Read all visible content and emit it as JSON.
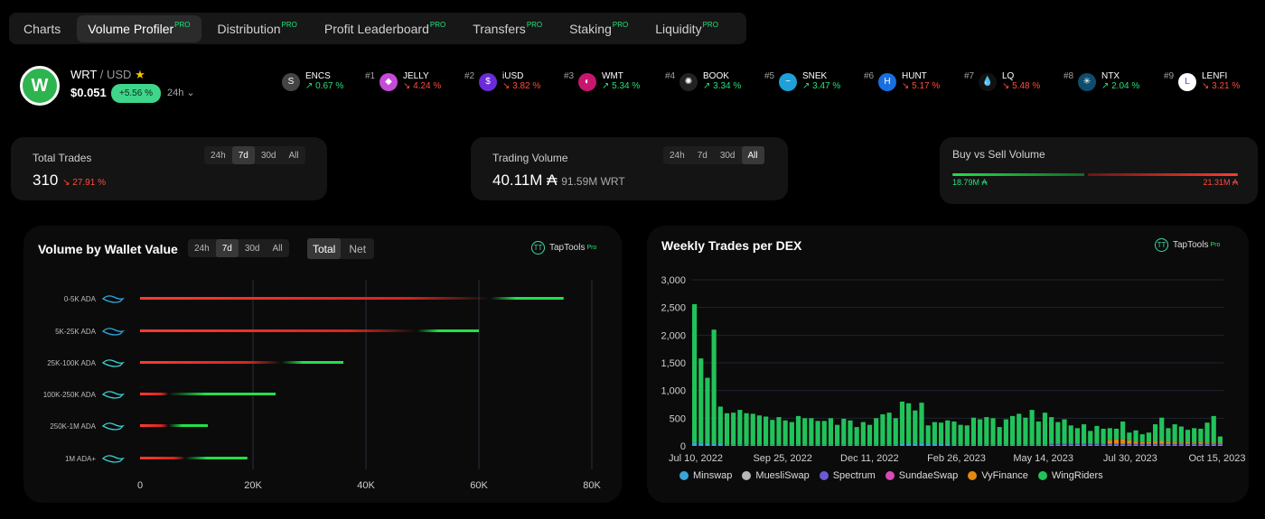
{
  "tabs": [
    {
      "label": "Charts",
      "pro": ""
    },
    {
      "label": "Volume Profiler",
      "pro": "PRO"
    },
    {
      "label": "Distribution",
      "pro": "PRO"
    },
    {
      "label": "Profit Leaderboard",
      "pro": "PRO"
    },
    {
      "label": "Transfers",
      "pro": "PRO"
    },
    {
      "label": "Staking",
      "pro": "PRO"
    },
    {
      "label": "Liquidity",
      "pro": "PRO"
    }
  ],
  "token": {
    "symbol": "WRT",
    "quote": "/ USD",
    "star": "★",
    "price": "$0.051",
    "change": "+5.56 %",
    "timeframe": "24h",
    "chevron": "⌄"
  },
  "trending": [
    {
      "rank": "",
      "name": "ENCS",
      "change": "↗ 0.67 %",
      "dir": "up",
      "color": "#444444",
      "glyph": "S"
    },
    {
      "rank": "#1",
      "name": "JELLY",
      "change": "↘ 4.24 %",
      "dir": "down",
      "color": "#c54bd8",
      "glyph": "◆"
    },
    {
      "rank": "#2",
      "name": "iUSD",
      "change": "↘ 3.82 %",
      "dir": "down",
      "color": "#6a2bd9",
      "glyph": "$"
    },
    {
      "rank": "#3",
      "name": "WMT",
      "change": "↗ 5.34 %",
      "dir": "up",
      "color": "#c8166f",
      "glyph": "◐"
    },
    {
      "rank": "#4",
      "name": "BOOK",
      "change": "↗ 3.34 %",
      "dir": "up",
      "color": "#222222",
      "glyph": "✺"
    },
    {
      "rank": "#5",
      "name": "SNEK",
      "change": "↗ 3.47 %",
      "dir": "up",
      "color": "#1ea0d8",
      "glyph": "~"
    },
    {
      "rank": "#6",
      "name": "HUNT",
      "change": "↘ 5.17 %",
      "dir": "down",
      "color": "#1a6fe0",
      "glyph": "H"
    },
    {
      "rank": "#7",
      "name": "LQ",
      "change": "↘ 5.48 %",
      "dir": "down",
      "color": "#111111",
      "glyph": "💧"
    },
    {
      "rank": "#8",
      "name": "NTX",
      "change": "↗ 2.04 %",
      "dir": "up",
      "color": "#0e4d6e",
      "glyph": "✳"
    },
    {
      "rank": "#9",
      "name": "LENFI",
      "change": "↘ 3.21 %",
      "dir": "down",
      "color": "#ffffff",
      "glyph": "L"
    }
  ],
  "total_trades": {
    "label": "Total Trades",
    "value": "310",
    "change": "↘ 27.91 %",
    "ranges": [
      "24h",
      "7d",
      "30d",
      "All"
    ],
    "selected": "7d"
  },
  "trading_volume": {
    "label": "Trading Volume",
    "value": "40.11M ₳",
    "sub": "91.59M WRT",
    "ranges": [
      "24h",
      "7d",
      "30d",
      "All"
    ],
    "selected": "All"
  },
  "buy_sell": {
    "label": "Buy vs Sell Volume",
    "buy": "18.79M ₳",
    "sell": "21.31M ₳",
    "buy_value": 18.79,
    "sell_value": 21.31
  },
  "wallet_panel": {
    "title": "Volume by Wallet Value",
    "ranges": [
      "24h",
      "7d",
      "30d",
      "All"
    ],
    "selected": "7d",
    "modes": [
      "Total",
      "Net"
    ],
    "mode_selected": "Total",
    "brand": "TapTools",
    "brand_pro": "Pro"
  },
  "dex_panel": {
    "title": "Weekly Trades per DEX",
    "brand": "TapTools",
    "brand_pro": "Pro"
  },
  "chart_data": [
    {
      "type": "bar",
      "title": "Volume by Wallet Value",
      "orientation": "horizontal",
      "categories": [
        "0-5K ADA",
        "5K-25K ADA",
        "25K-100K ADA",
        "100K-250K ADA",
        "250K-1M ADA",
        "1M ADA+"
      ],
      "series": [
        {
          "name": "Sell",
          "color": "#ff3b30",
          "values": [
            62000,
            49000,
            25000,
            5000,
            5000,
            8000
          ]
        },
        {
          "name": "Buy",
          "color": "#22e04a",
          "values": [
            75000,
            60000,
            36000,
            24000,
            12000,
            19000
          ]
        }
      ],
      "xticks": [
        "0",
        "20K",
        "40K",
        "60K",
        "80K"
      ],
      "xlim": [
        0,
        80000
      ],
      "grid": true
    },
    {
      "type": "bar",
      "stacked": true,
      "title": "Weekly Trades per DEX",
      "ylim": [
        0,
        3000
      ],
      "yticks": [
        "0",
        "500",
        "1,000",
        "1,500",
        "2,000",
        "2,500",
        "3,000"
      ],
      "xtick_labels": [
        "Jul 10, 2022",
        "Sep 25, 2022",
        "Dec 11, 2022",
        "Feb 26, 2023",
        "May 14, 2023",
        "Jul 30, 2023",
        "Oct 15, 2023"
      ],
      "legend_position": "bottom",
      "series": [
        {
          "name": "Minswap",
          "color": "#3aa6d8",
          "values": [
            60,
            60,
            50,
            40,
            50,
            20,
            20,
            20,
            20,
            20,
            20,
            20,
            20,
            20,
            20,
            20,
            20,
            20,
            20,
            20,
            20,
            20,
            20,
            20,
            20,
            20,
            20,
            20,
            20,
            20,
            20,
            20,
            40,
            40,
            40,
            60,
            40,
            40,
            40,
            40,
            20,
            20,
            20,
            20,
            20,
            20,
            20,
            20,
            20,
            20,
            20,
            20,
            20,
            20,
            20,
            20,
            20,
            20,
            20,
            20,
            20,
            20,
            20,
            20,
            20,
            20,
            20,
            20,
            20,
            20,
            20,
            20,
            20,
            20,
            20,
            20,
            20,
            20,
            20,
            20,
            20,
            20
          ]
        },
        {
          "name": "MuesliSwap",
          "color": "#b8b8b8",
          "values": [
            0,
            0,
            0,
            0,
            0,
            0,
            0,
            0,
            0,
            0,
            0,
            0,
            0,
            0,
            0,
            0,
            0,
            0,
            0,
            0,
            0,
            0,
            0,
            0,
            0,
            0,
            0,
            0,
            0,
            0,
            0,
            0,
            0,
            0,
            0,
            0,
            0,
            0,
            0,
            0,
            0,
            0,
            0,
            0,
            0,
            0,
            0,
            0,
            0,
            0,
            0,
            0,
            0,
            0,
            0,
            0,
            0,
            0,
            0,
            0,
            0,
            0,
            0,
            0,
            0,
            0,
            0,
            0,
            0,
            0,
            0,
            0,
            0,
            0,
            0,
            0,
            0,
            0,
            0,
            0,
            0,
            0
          ]
        },
        {
          "name": "Spectrum",
          "color": "#6a5ad8",
          "values": [
            0,
            0,
            0,
            0,
            0,
            0,
            0,
            0,
            0,
            0,
            0,
            0,
            0,
            0,
            0,
            0,
            0,
            0,
            0,
            0,
            0,
            0,
            0,
            0,
            0,
            0,
            0,
            0,
            0,
            0,
            0,
            0,
            0,
            0,
            0,
            0,
            0,
            0,
            0,
            0,
            0,
            0,
            0,
            0,
            0,
            0,
            0,
            0,
            0,
            0,
            0,
            0,
            0,
            0,
            0,
            20,
            20,
            20,
            20,
            20,
            20,
            20,
            20,
            20,
            20,
            20,
            20,
            20,
            20,
            20,
            20,
            20,
            20,
            20,
            20,
            20,
            20,
            20,
            20,
            20,
            20,
            20
          ]
        },
        {
          "name": "SundaeSwap",
          "color": "#d84ab5",
          "values": [
            0,
            0,
            0,
            0,
            0,
            0,
            0,
            0,
            0,
            0,
            0,
            0,
            0,
            0,
            0,
            0,
            0,
            0,
            0,
            0,
            0,
            0,
            0,
            0,
            0,
            0,
            0,
            0,
            0,
            0,
            0,
            0,
            0,
            0,
            0,
            0,
            0,
            0,
            0,
            0,
            0,
            0,
            0,
            0,
            0,
            0,
            0,
            0,
            0,
            0,
            0,
            0,
            0,
            0,
            0,
            0,
            0,
            0,
            0,
            0,
            0,
            0,
            0,
            0,
            0,
            0,
            0,
            0,
            0,
            0,
            0,
            0,
            0,
            0,
            0,
            0,
            0,
            0,
            0,
            0,
            0,
            0
          ]
        },
        {
          "name": "VyFinance",
          "color": "#e08a10",
          "values": [
            0,
            0,
            0,
            0,
            0,
            0,
            0,
            0,
            0,
            0,
            0,
            0,
            0,
            0,
            0,
            0,
            0,
            0,
            0,
            0,
            0,
            0,
            0,
            0,
            0,
            0,
            0,
            0,
            0,
            0,
            0,
            0,
            0,
            0,
            0,
            0,
            0,
            0,
            0,
            0,
            0,
            0,
            0,
            0,
            0,
            0,
            0,
            0,
            0,
            0,
            0,
            0,
            0,
            0,
            0,
            0,
            0,
            0,
            0,
            0,
            0,
            0,
            0,
            0,
            60,
            80,
            80,
            60,
            40,
            30,
            30,
            40,
            50,
            30,
            30,
            20,
            30,
            20,
            30,
            20,
            20,
            20
          ]
        },
        {
          "name": "WingRiders",
          "color": "#22c25a",
          "values": [
            2500,
            1520,
            1180,
            2060,
            660,
            570,
            580,
            630,
            570,
            560,
            530,
            510,
            450,
            500,
            440,
            410,
            520,
            480,
            480,
            430,
            430,
            480,
            360,
            470,
            440,
            320,
            410,
            360,
            480,
            550,
            580,
            480,
            760,
            730,
            600,
            720,
            330,
            390,
            380,
            420,
            420,
            360,
            350,
            490,
            460,
            500,
            480,
            320,
            460,
            520,
            560,
            490,
            630,
            420,
            580,
            480,
            390,
            440,
            330,
            280,
            350,
            230,
            320,
            270,
            220,
            190,
            320,
            140,
            200,
            140,
            170,
            310,
            420,
            250,
            320,
            290,
            220,
            260,
            240,
            360,
            480,
            110
          ]
        }
      ]
    }
  ]
}
